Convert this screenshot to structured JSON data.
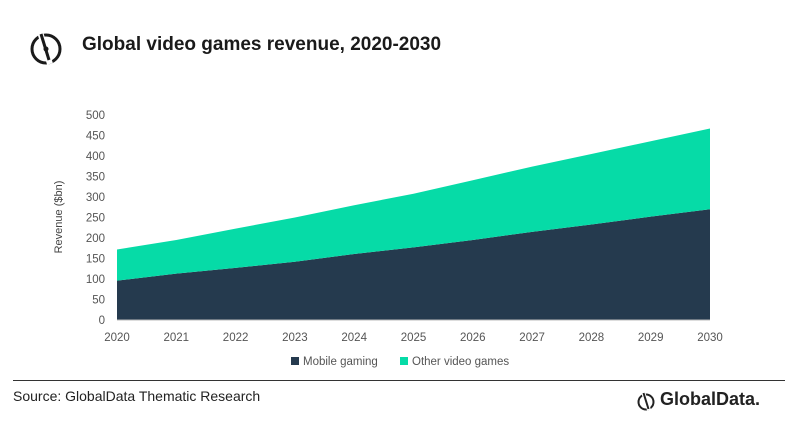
{
  "title": "Global video games revenue, 2020-2030",
  "source": "Source: GlobalData Thematic Research",
  "brand": "GlobalData.",
  "colors": {
    "mobile": "#253a4e",
    "other": "#06dba7"
  },
  "chart_data": {
    "type": "area",
    "stacked": true,
    "title": "Global video games revenue, 2020-2030",
    "xlabel": "",
    "ylabel": "Revenue ($bn)",
    "ylim": [
      0,
      500
    ],
    "yticks": [
      0,
      50,
      100,
      150,
      200,
      250,
      300,
      350,
      400,
      450,
      500
    ],
    "x": [
      "2020",
      "2021",
      "2022",
      "2023",
      "2024",
      "2025",
      "2026",
      "2027",
      "2028",
      "2029",
      "2030"
    ],
    "series": [
      {
        "name": "Mobile gaming",
        "values": [
          96,
          113,
          127,
          142,
          161,
          177,
          195,
          215,
          233,
          252,
          270
        ]
      },
      {
        "name": "Other video games",
        "values": [
          76,
          82,
          96,
          108,
          119,
          131,
          146,
          159,
          172,
          184,
          197
        ]
      }
    ],
    "grid": false,
    "legend": "bottom"
  }
}
